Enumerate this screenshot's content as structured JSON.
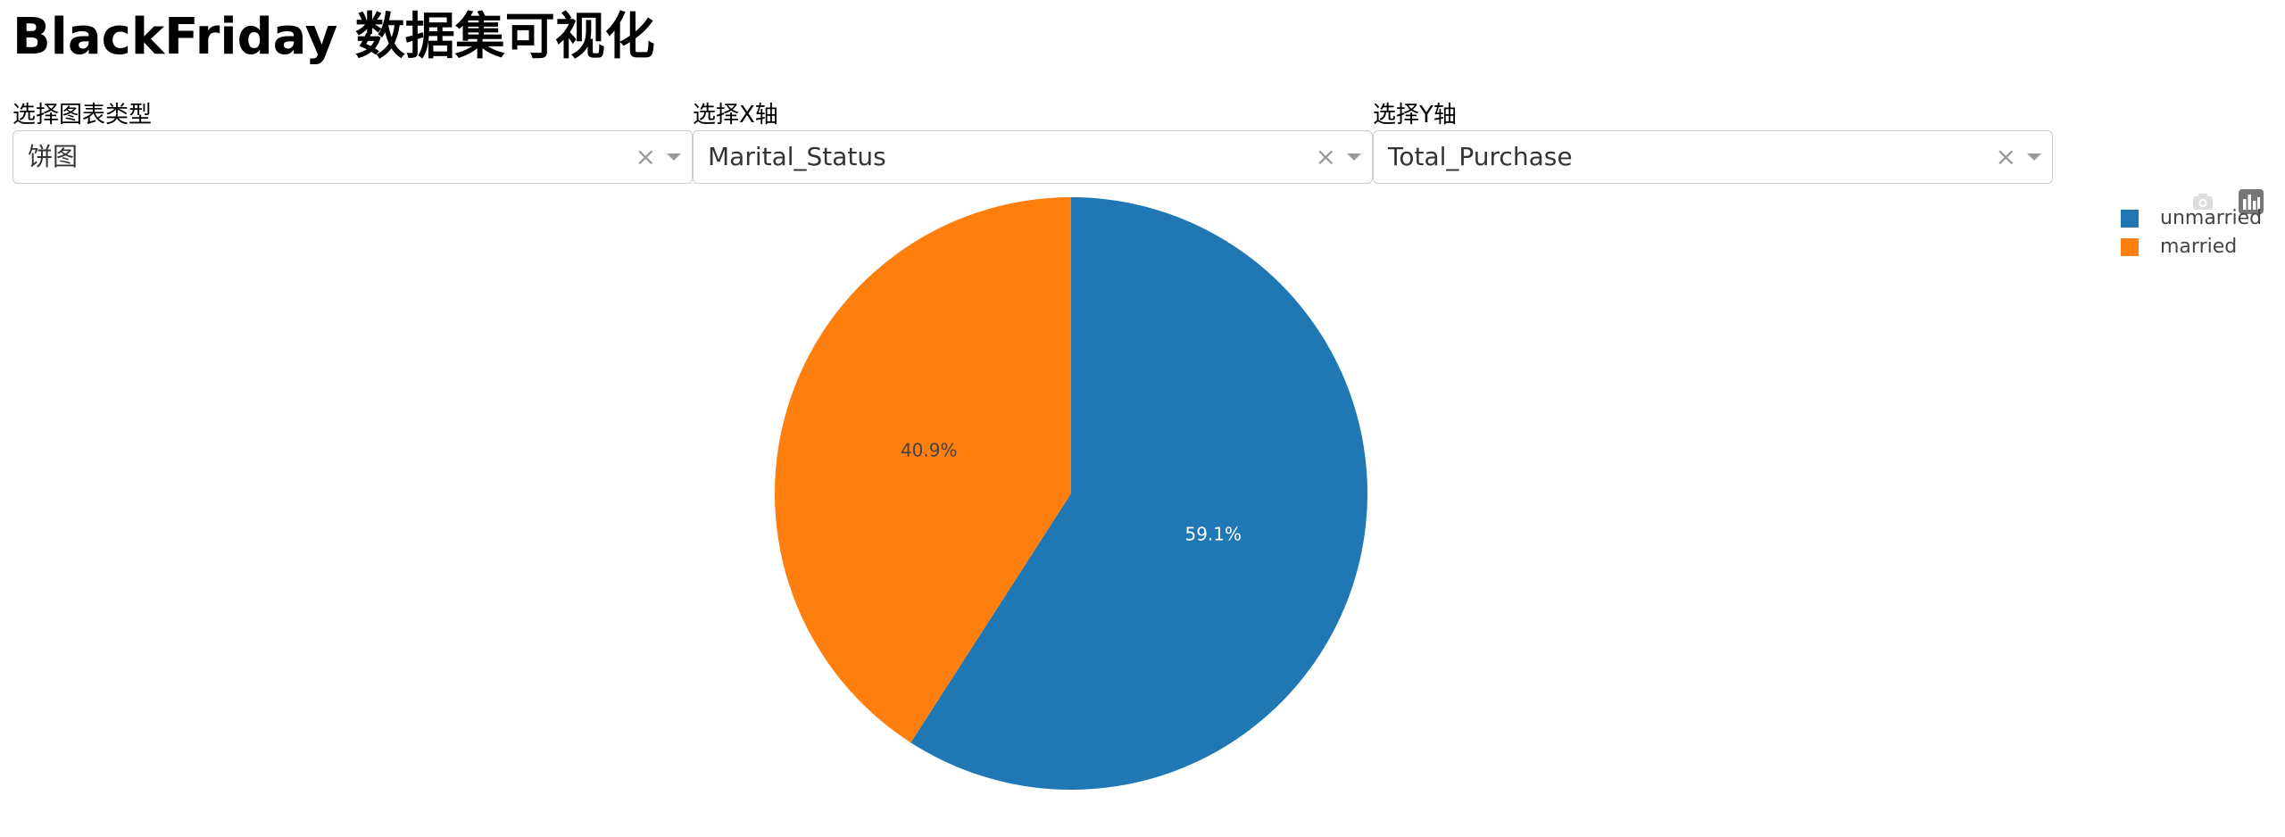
{
  "page": {
    "title": "BlackFriday 数据集可视化"
  },
  "controls": {
    "chart_type": {
      "label": "选择图表类型",
      "value": "饼图",
      "clear": "×"
    },
    "x_axis": {
      "label": "选择X轴",
      "value": "Marital_Status",
      "clear": "×"
    },
    "y_axis": {
      "label": "选择Y轴",
      "value": "Total_Purchase",
      "clear": "×"
    }
  },
  "modebar": {
    "buttons": [
      "camera-icon",
      "plotly-logo-icon"
    ]
  },
  "chart_data": {
    "type": "pie",
    "labels": [
      "unmarried",
      "married"
    ],
    "values": [
      59.1,
      40.9
    ],
    "text": [
      "59.1%",
      "40.9%"
    ],
    "colors": [
      "#1f77b4",
      "#ff7f0e"
    ],
    "text_colors": [
      "#ffffff",
      "#444444"
    ],
    "legend_position": "top-right",
    "direction": "clockwise",
    "start": "top"
  }
}
